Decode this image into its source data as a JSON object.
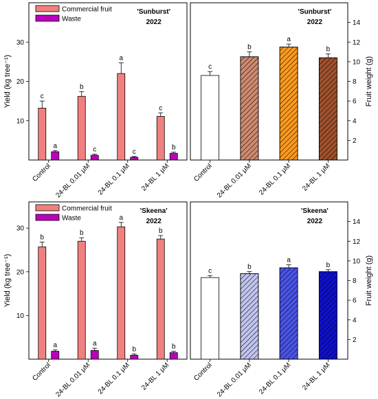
{
  "chart_data": [
    {
      "id": "a",
      "type": "bar",
      "annotation": [
        "'Sunburst'",
        "2022"
      ],
      "ylabel": "Yield (kg tree⁻¹)",
      "ylim": [
        0,
        40
      ],
      "yticks": [
        10,
        20,
        30
      ],
      "axis_side": "left",
      "categories": [
        "Control",
        "24-BL 0.01 μM",
        "24-BL 0.1 μM",
        "24-BL 1 μM"
      ],
      "legend": {
        "position": "top-left",
        "entries": [
          "Commercial fruit",
          "Waste"
        ]
      },
      "series": [
        {
          "name": "Commercial fruit",
          "color": "#f08080",
          "values": [
            13.2,
            16.2,
            22.0,
            11.1
          ],
          "errors": [
            1.8,
            1.2,
            2.7,
            0.9
          ],
          "letters": [
            "c",
            "b",
            "a",
            "c"
          ]
        },
        {
          "name": "Waste",
          "color": "#bb00bb",
          "values": [
            2.1,
            1.2,
            0.7,
            1.7
          ],
          "errors": [
            0.3,
            0.3,
            0.2,
            0.3
          ],
          "letters": [
            "a",
            "c",
            "c",
            "b"
          ]
        }
      ]
    },
    {
      "id": "b",
      "type": "bar",
      "annotation": [
        "'Sunburst'",
        "2022"
      ],
      "ylabel": "Fruit weight (g)",
      "ylim": [
        0,
        16
      ],
      "yticks": [
        2,
        4,
        6,
        8,
        10,
        12,
        14
      ],
      "axis_side": "right",
      "categories": [
        "Control",
        "24-BL 0.01 μM",
        "24-BL 0.1 μM",
        "24-BL 1 μM"
      ],
      "series": [
        {
          "values": [
            8.6,
            10.5,
            11.5,
            10.4
          ],
          "errors": [
            0.4,
            0.5,
            0.3,
            0.4
          ],
          "letters": [
            "c",
            "b",
            "a",
            "b"
          ],
          "colors": [
            "#ffffff",
            "#d08a70",
            "#ff9a1e",
            "#a0522d"
          ],
          "hatched": [
            false,
            true,
            true,
            true
          ]
        }
      ]
    },
    {
      "id": "c",
      "type": "bar",
      "annotation": [
        "'Skeena'",
        "2022"
      ],
      "ylabel": "Yield (kg tree⁻¹)",
      "ylim": [
        0,
        36
      ],
      "yticks": [
        10,
        20,
        30
      ],
      "axis_side": "left",
      "categories": [
        "Control",
        "24-BL 0.01 μM",
        "24-BL 0.1 μM",
        "24-BL 1 μM"
      ],
      "legend": {
        "position": "top-left",
        "entries": [
          "Commercial fruit",
          "Waste"
        ]
      },
      "series": [
        {
          "name": "Commercial fruit",
          "color": "#f08080",
          "values": [
            25.7,
            27.0,
            30.3,
            27.5
          ],
          "errors": [
            1.1,
            0.8,
            1.0,
            0.8
          ],
          "letters": [
            "b",
            "b",
            "a",
            "b"
          ]
        },
        {
          "name": "Waste",
          "color": "#bb00bb",
          "values": [
            1.8,
            2.0,
            0.9,
            1.5
          ],
          "errors": [
            0.3,
            0.5,
            0.3,
            0.3
          ],
          "letters": [
            "a",
            "a",
            "b",
            "b"
          ]
        }
      ]
    },
    {
      "id": "d",
      "type": "bar",
      "annotation": [
        "'Skeena'",
        "2022"
      ],
      "ylabel": "Fruit weight (g)",
      "ylim": [
        0,
        16
      ],
      "yticks": [
        2,
        4,
        6,
        8,
        10,
        12,
        14
      ],
      "axis_side": "right",
      "categories": [
        "Control",
        "24-BL 0.01 μM",
        "24-BL 0.1 μM",
        "24-BL 1 μM"
      ],
      "series": [
        {
          "values": [
            8.3,
            8.7,
            9.3,
            8.9
          ],
          "errors": [
            0.2,
            0.2,
            0.3,
            0.2
          ],
          "letters": [
            "c",
            "b",
            "a",
            "b"
          ],
          "colors": [
            "#ffffff",
            "#c0c4ee",
            "#4b54e8",
            "#1010cc"
          ],
          "hatched": [
            false,
            true,
            true,
            true
          ]
        }
      ]
    }
  ]
}
